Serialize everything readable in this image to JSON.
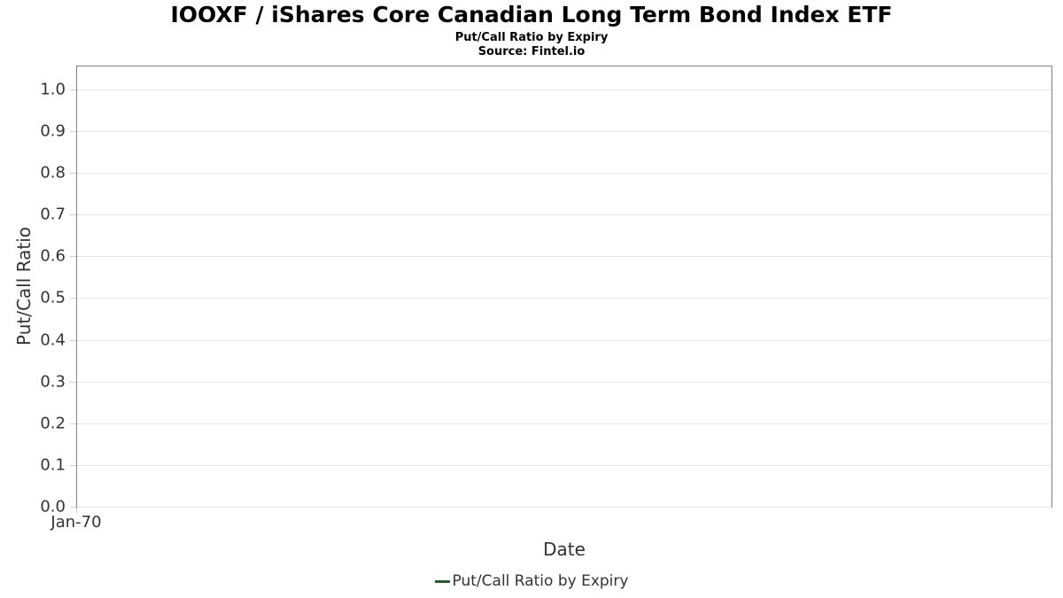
{
  "header": {
    "title": "IOOXF / iShares Core Canadian Long Term Bond Index ETF",
    "subtitle": "Put/Call Ratio by Expiry",
    "source": "Source: Fintel.io"
  },
  "chart_data": {
    "type": "line",
    "title": "IOOXF / iShares Core Canadian Long Term Bond Index ETF",
    "subtitle": "Put/Call Ratio by Expiry",
    "source": "Source: Fintel.io",
    "xlabel": "Date",
    "ylabel": "Put/Call Ratio",
    "ylim": [
      0.0,
      1.055
    ],
    "yticks": [
      0.0,
      0.1,
      0.2,
      0.3,
      0.4,
      0.5,
      0.6,
      0.7,
      0.8,
      0.9,
      1.0
    ],
    "xticks": [
      "Jan-70"
    ],
    "grid": "horizontal",
    "legend_position": "bottom",
    "series": [
      {
        "name": "Put/Call Ratio by Expiry",
        "color": "#245c30",
        "x": [],
        "values": []
      }
    ]
  },
  "colors": {
    "accent_green": "#245c30",
    "plot_border": "#808080",
    "gridline": "#e6e6e6",
    "tick_mark": "#d0d0d0",
    "tick_text": "#333333",
    "title_text": "#000000"
  }
}
